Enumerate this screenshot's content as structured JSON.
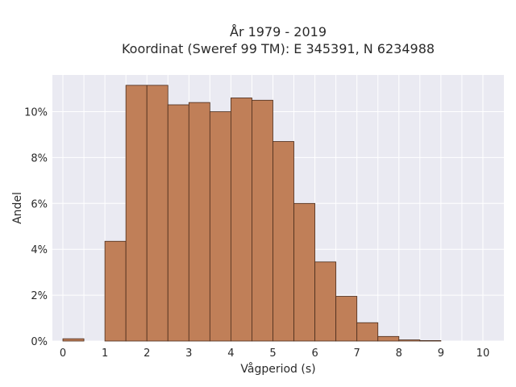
{
  "chart_data": {
    "type": "bar",
    "title_line1": "År 1979 - 2019",
    "title_line2": "Koordinat (Sweref 99 TM): E 345391, N 6234988",
    "xlabel": "Vågperiod (s)",
    "ylabel": "Andel",
    "bin_width": 0.5,
    "bin_starts": [
      0,
      0.5,
      1,
      1.5,
      2,
      2.5,
      3,
      3.5,
      4,
      4.5,
      5,
      5.5,
      6,
      6.5,
      7,
      7.5,
      8,
      8.5,
      9,
      9.5
    ],
    "values": [
      0.1,
      0,
      4.35,
      11.15,
      11.15,
      10.3,
      10.4,
      10.0,
      10.6,
      10.5,
      8.7,
      6.0,
      3.45,
      1.95,
      0.8,
      0.2,
      0.05,
      0.02,
      0,
      0
    ],
    "xlim": [
      -0.25,
      10.5
    ],
    "ylim": [
      0,
      11.6
    ],
    "xticks": [
      "0",
      "1",
      "2",
      "3",
      "4",
      "5",
      "6",
      "7",
      "8",
      "9",
      "10"
    ],
    "yticks": [
      "0%",
      "2%",
      "4%",
      "6%",
      "8%",
      "10%"
    ],
    "grid": true,
    "legend": "none",
    "colors": {
      "bar_fill": "#c07f58",
      "bar_edge": "#4a2c1c",
      "plot_bg": "#eaeaf2",
      "grid": "#ffffff"
    }
  }
}
